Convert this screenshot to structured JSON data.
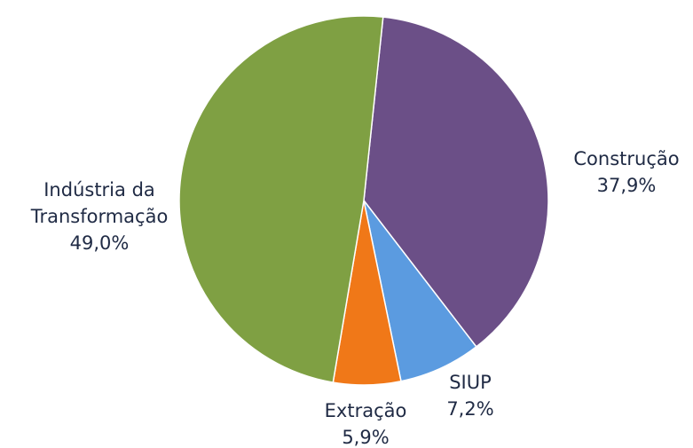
{
  "chart_data": {
    "type": "pie",
    "categories": [
      "Construção",
      "SIUP",
      "Extração",
      "Indústria da Transformação"
    ],
    "values": [
      37.9,
      7.2,
      5.9,
      49.0
    ],
    "value_labels": [
      "37,9%",
      "7,2%",
      "5,9%",
      "49,0%"
    ],
    "colors": [
      "#6b4f87",
      "#5b9be0",
      "#f07818",
      "#7fa043"
    ]
  }
}
